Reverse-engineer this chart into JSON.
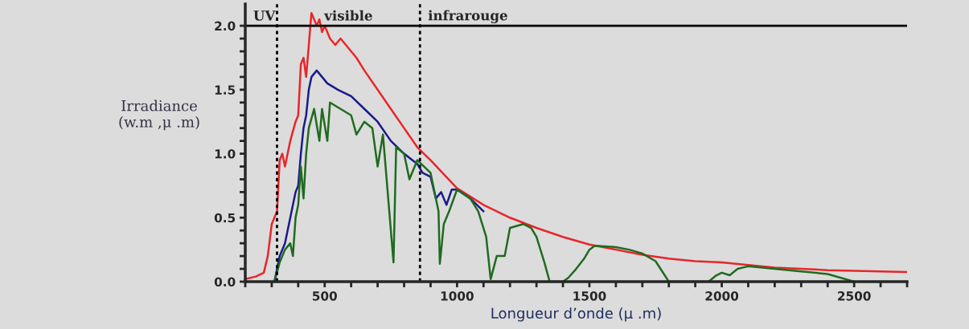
{
  "chart_data": {
    "type": "line",
    "xlabel": "Longueur d’onde (μ .m)",
    "ylabel": "Irradiance\n(w.m ,μ .m)",
    "xlim": [
      200,
      2700
    ],
    "ylim": [
      0,
      2.17
    ],
    "xticks": [
      {
        "value": 200,
        "label": null
      },
      {
        "value": 300,
        "label": null
      },
      {
        "value": 400,
        "label": null
      },
      500,
      {
        "value": 600,
        "label": null
      },
      {
        "value": 700,
        "label": null
      },
      {
        "value": 800,
        "label": null
      },
      {
        "value": 900,
        "label": null
      },
      1000,
      {
        "value": 1100,
        "label": null
      },
      {
        "value": 1200,
        "label": null
      },
      {
        "value": 1300,
        "label": null
      },
      {
        "value": 1400,
        "label": null
      },
      1500,
      {
        "value": 1600,
        "label": null
      },
      {
        "value": 1700,
        "label": null
      },
      {
        "value": 1800,
        "label": null
      },
      {
        "value": 1900,
        "label": null
      },
      2000,
      {
        "value": 2100,
        "label": null
      },
      {
        "value": 2200,
        "label": null
      },
      {
        "value": 2300,
        "label": null
      },
      {
        "value": 2400,
        "label": null
      },
      2500,
      {
        "value": 2600,
        "label": null
      },
      {
        "value": 2700,
        "label": null
      }
    ],
    "yticks": [
      {
        "value": 0,
        "label": "0.0"
      },
      {
        "value": 0.1,
        "label": null
      },
      {
        "value": 0.2,
        "label": null
      },
      {
        "value": 0.3,
        "label": null
      },
      {
        "value": 0.4,
        "label": null
      },
      {
        "value": 0.5,
        "label": "0.5"
      },
      {
        "value": 0.6,
        "label": null
      },
      {
        "value": 0.7,
        "label": null
      },
      {
        "value": 0.8,
        "label": null
      },
      {
        "value": 0.9,
        "label": null
      },
      {
        "value": 1.0,
        "label": "1.0"
      },
      {
        "value": 1.1,
        "label": null
      },
      {
        "value": 1.2,
        "label": null
      },
      {
        "value": 1.3,
        "label": null
      },
      {
        "value": 1.4,
        "label": null
      },
      {
        "value": 1.5,
        "label": "1.5"
      },
      {
        "value": 1.6,
        "label": null
      },
      {
        "value": 1.7,
        "label": null
      },
      {
        "value": 1.8,
        "label": null
      },
      {
        "value": 1.9,
        "label": null
      },
      {
        "value": 2.0,
        "label": "2.0"
      }
    ],
    "grid": false,
    "legend": false,
    "marker": "none",
    "line_style": "solid",
    "series": [
      {
        "color": "#e8262a",
        "x": [
          200,
          240,
          270,
          285,
          300,
          320,
          330,
          340,
          350,
          370,
          390,
          400,
          410,
          420,
          430,
          440,
          450,
          460,
          470,
          480,
          490,
          500,
          520,
          540,
          560,
          580,
          600,
          620,
          650,
          700,
          750,
          800,
          850,
          900,
          1000,
          1100,
          1200,
          1300,
          1400,
          1500,
          1600,
          1700,
          1800,
          1900,
          2000,
          2100,
          2200,
          2300,
          2400,
          2500,
          2600,
          2700
        ],
        "values": [
          0.02,
          0.04,
          0.07,
          0.2,
          0.45,
          0.55,
          0.95,
          1.0,
          0.9,
          1.1,
          1.25,
          1.3,
          1.7,
          1.75,
          1.6,
          1.85,
          2.1,
          2.05,
          2.0,
          2.05,
          1.95,
          2.0,
          1.9,
          1.85,
          1.9,
          1.85,
          1.8,
          1.75,
          1.65,
          1.5,
          1.35,
          1.2,
          1.05,
          0.95,
          0.73,
          0.6,
          0.5,
          0.42,
          0.35,
          0.29,
          0.25,
          0.21,
          0.18,
          0.16,
          0.15,
          0.13,
          0.11,
          0.1,
          0.09,
          0.085,
          0.08,
          0.075
        ]
      },
      {
        "color": "#1a1a8c",
        "x": [
          310,
          330,
          350,
          370,
          390,
          400,
          410,
          420,
          430,
          440,
          450,
          470,
          490,
          510,
          550,
          600,
          650,
          700,
          750,
          800,
          850,
          870,
          900,
          920,
          940,
          960,
          980,
          1000,
          1050,
          1100
        ],
        "values": [
          0,
          0.2,
          0.3,
          0.5,
          0.7,
          0.75,
          1.0,
          1.2,
          1.3,
          1.5,
          1.6,
          1.65,
          1.6,
          1.55,
          1.5,
          1.45,
          1.35,
          1.25,
          1.1,
          1.0,
          0.92,
          0.85,
          0.82,
          0.65,
          0.7,
          0.6,
          0.72,
          0.72,
          0.65,
          0.55
        ]
      },
      {
        "color": "#1f6b1f",
        "x": [
          310,
          330,
          350,
          370,
          380,
          390,
          400,
          410,
          420,
          430,
          440,
          460,
          480,
          490,
          510,
          520,
          560,
          600,
          620,
          650,
          680,
          700,
          720,
          760,
          770,
          800,
          820,
          850,
          900,
          930,
          935,
          950,
          970,
          1000,
          1050,
          1080,
          1110,
          1127,
          1150,
          1180,
          1200,
          1250,
          1280,
          1300,
          1330,
          1350,
          1400,
          1420,
          1450,
          1480,
          1500,
          1520,
          1600,
          1650,
          1700,
          1750,
          1800,
          1950,
          1980,
          2000,
          2030,
          2060,
          2100,
          2200,
          2300,
          2400,
          2450,
          2500
        ],
        "values": [
          0,
          0.15,
          0.25,
          0.3,
          0.2,
          0.5,
          0.6,
          0.9,
          0.65,
          1.0,
          1.2,
          1.35,
          1.1,
          1.35,
          1.1,
          1.4,
          1.35,
          1.3,
          1.15,
          1.25,
          1.2,
          0.9,
          1.15,
          0.15,
          1.05,
          1.0,
          0.8,
          0.95,
          0.85,
          0.55,
          0.14,
          0.45,
          0.55,
          0.72,
          0.65,
          0.55,
          0.35,
          0.02,
          0.2,
          0.2,
          0.42,
          0.45,
          0.42,
          0.35,
          0.15,
          0.0,
          0.0,
          0.03,
          0.1,
          0.18,
          0.25,
          0.28,
          0.27,
          0.25,
          0.22,
          0.16,
          0.0,
          0.0,
          0.05,
          0.07,
          0.05,
          0.1,
          0.12,
          0.1,
          0.08,
          0.06,
          0.03,
          0.0
        ]
      }
    ],
    "ref_lines": [
      {
        "axis": "x",
        "value": 320,
        "line_style": "dotted",
        "color": "#000000"
      },
      {
        "axis": "x",
        "value": 860,
        "line_style": "dotted",
        "color": "#000000"
      },
      {
        "axis": "y",
        "value": 2.0,
        "line_style": "solid",
        "color": "#000000"
      }
    ],
    "annotations": [
      "UV",
      "visible",
      "infrarouge"
    ]
  }
}
